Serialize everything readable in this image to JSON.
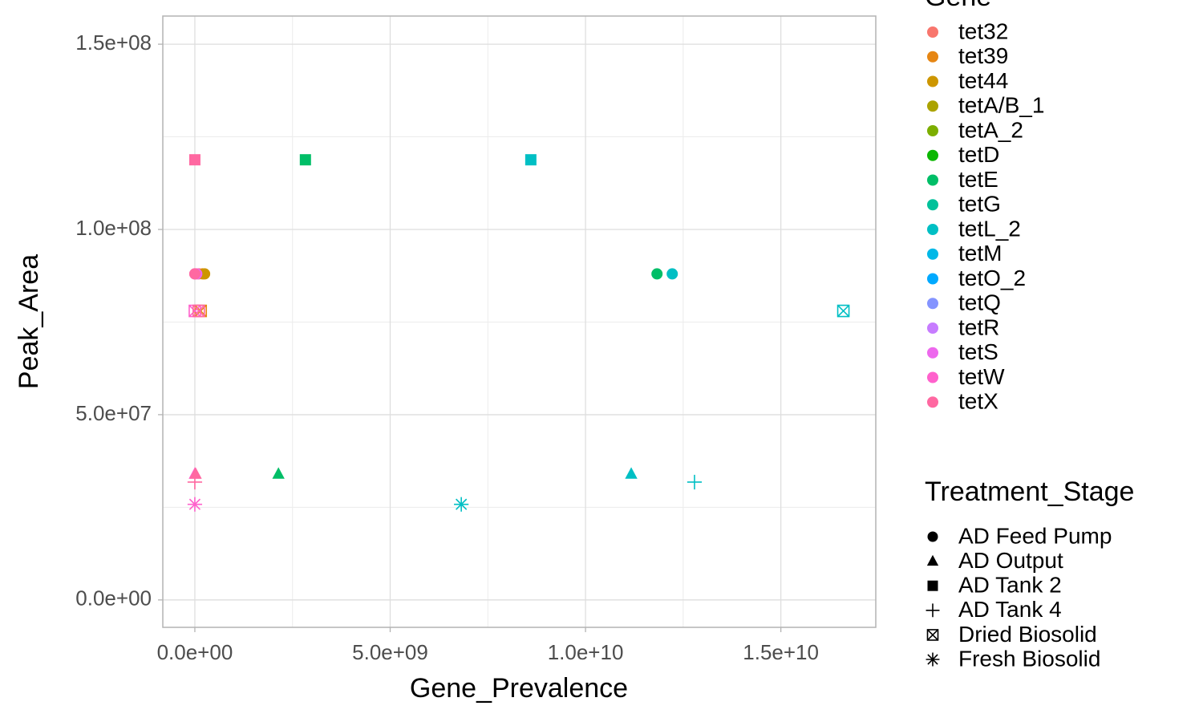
{
  "chart_data": {
    "type": "scatter",
    "x_label": "Gene_Prevalence",
    "y_label": "Peak_Area",
    "xlim": [
      -820000000,
      17430000000
    ],
    "ylim": [
      -7400000,
      157600000
    ],
    "xticks": [
      {
        "value": 0,
        "label": "0.0e+00"
      },
      {
        "value": 5000000000,
        "label": "5.0e+09"
      },
      {
        "value": 10000000000,
        "label": "1.0e+10"
      },
      {
        "value": 15000000000,
        "label": "1.5e+10"
      }
    ],
    "yticks": [
      {
        "value": 0,
        "label": "0.0e+00"
      },
      {
        "value": 50000000,
        "label": "5.0e+07"
      },
      {
        "value": 100000000,
        "label": "1.0e+08"
      },
      {
        "value": 150000000,
        "label": "1.5e+08"
      }
    ],
    "xminorticks": [
      2500000000,
      7500000000,
      12500000000
    ],
    "yminorticks": [
      25000000,
      75000000,
      125000000
    ],
    "grid": true,
    "color_legend_title": "Gene",
    "shape_legend_title": "Treatment_Stage",
    "shape_legend": [
      {
        "name": "AD Feed Pump",
        "shape": "circle"
      },
      {
        "name": "AD Output",
        "shape": "triangle"
      },
      {
        "name": "AD Tank 2",
        "shape": "square"
      },
      {
        "name": "AD Tank 4",
        "shape": "plus"
      },
      {
        "name": "Dried Biosolid",
        "shape": "boxcross"
      },
      {
        "name": "Fresh Biosolid",
        "shape": "asterisk"
      }
    ],
    "series": [
      {
        "name": "tet32",
        "color": "#F8766D",
        "x": [
          100000000
        ],
        "values": [
          88000000
        ],
        "stages": [
          "AD Feed Pump"
        ]
      },
      {
        "name": "tet39",
        "color": "#E68613",
        "x": [
          200000000,
          150000000
        ],
        "values": [
          88000000,
          78000000
        ],
        "stages": [
          "AD Feed Pump",
          "Dried Biosolid"
        ]
      },
      {
        "name": "tet44",
        "color": "#CD9600",
        "x": [
          250000000
        ],
        "values": [
          88000000
        ],
        "stages": [
          "AD Feed Pump"
        ]
      },
      {
        "name": "tetA/B_1",
        "color": "#ABA300",
        "x": [],
        "values": [],
        "stages": []
      },
      {
        "name": "tetA_2",
        "color": "#7CAE00",
        "x": [],
        "values": [],
        "stages": []
      },
      {
        "name": "tetD",
        "color": "#0CB702",
        "x": [],
        "values": [],
        "stages": []
      },
      {
        "name": "tetE",
        "color": "#00BE67",
        "x": [
          2830000000,
          11830000000,
          2140000000
        ],
        "values": [
          118800000,
          88000000,
          34000000
        ],
        "stages": [
          "AD Tank 2",
          "AD Feed Pump",
          "AD Output"
        ]
      },
      {
        "name": "tetG",
        "color": "#00C19A",
        "x": [],
        "values": [],
        "stages": []
      },
      {
        "name": "tetL_2",
        "color": "#00BFC4",
        "x": [
          8600000000,
          12220000000,
          16600000000,
          11170000000,
          12790000000,
          6820000000
        ],
        "values": [
          118800000,
          88000000,
          78000000,
          34000000,
          31800000,
          25800000
        ],
        "stages": [
          "AD Tank 2",
          "AD Feed Pump",
          "Dried Biosolid",
          "AD Output",
          "AD Tank 4",
          "Fresh Biosolid"
        ]
      },
      {
        "name": "tetM",
        "color": "#00B8E7",
        "x": [],
        "values": [],
        "stages": []
      },
      {
        "name": "tetO_2",
        "color": "#00A9FF",
        "x": [],
        "values": [],
        "stages": []
      },
      {
        "name": "tetQ",
        "color": "#8494FF",
        "x": [],
        "values": [],
        "stages": []
      },
      {
        "name": "tetR",
        "color": "#C77CFF",
        "x": [],
        "values": [],
        "stages": []
      },
      {
        "name": "tetS",
        "color": "#ED68ED",
        "x": [
          50000000
        ],
        "values": [
          88000000
        ],
        "stages": [
          "AD Feed Pump"
        ]
      },
      {
        "name": "tetW",
        "color": "#FF61CC",
        "x": [
          0,
          0,
          0,
          0
        ],
        "values": [
          88000000,
          78000000,
          34000000,
          25800000
        ],
        "stages": [
          "AD Feed Pump",
          "Dried Biosolid",
          "AD Output",
          "Fresh Biosolid"
        ]
      },
      {
        "name": "tetX",
        "color": "#FF68A1",
        "x": [
          0,
          100000000,
          0,
          20000000,
          0
        ],
        "values": [
          118800000,
          78000000,
          31800000,
          34000000,
          88000000
        ],
        "stages": [
          "AD Tank 2",
          "Dried Biosolid",
          "AD Tank 4",
          "AD Output",
          "AD Feed Pump"
        ]
      }
    ]
  }
}
